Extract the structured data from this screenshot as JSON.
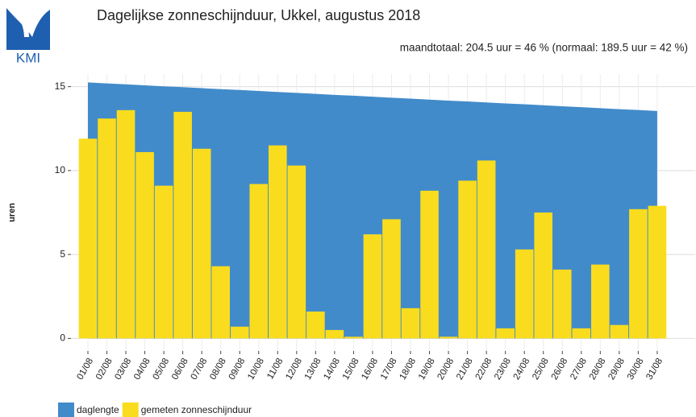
{
  "logo": "KMI",
  "chart_data": {
    "type": "bar",
    "title": "Dagelijkse zonneschijnduur, Ukkel, augustus 2018",
    "subtitle": "maandtotaal: 204.5 uur = 46 % (normaal: 189.5 uur = 42 %)",
    "y_label": "uren",
    "categories": [
      "01/08",
      "02/08",
      "03/08",
      "04/08",
      "05/08",
      "06/08",
      "07/08",
      "08/08",
      "09/08",
      "10/08",
      "11/08",
      "12/08",
      "13/08",
      "14/08",
      "15/08",
      "16/08",
      "17/08",
      "18/08",
      "19/08",
      "20/08",
      "21/08",
      "22/08",
      "23/08",
      "24/08",
      "25/08",
      "26/08",
      "27/08",
      "28/08",
      "29/08",
      "30/08",
      "31/08"
    ],
    "series": [
      {
        "name": "daglengte",
        "color": "#428bca",
        "kind": "area",
        "values": [
          15.25,
          15.19,
          15.14,
          15.08,
          15.02,
          14.97,
          14.91,
          14.85,
          14.8,
          14.74,
          14.68,
          14.63,
          14.57,
          14.51,
          14.46,
          14.4,
          14.34,
          14.29,
          14.23,
          14.17,
          14.12,
          14.06,
          14.0,
          13.95,
          13.89,
          13.83,
          13.78,
          13.72,
          13.66,
          13.61,
          13.55
        ]
      },
      {
        "name": "gemeten zonneschijnduur",
        "color": "#fadc1e",
        "kind": "bar",
        "values": [
          11.9,
          13.1,
          13.6,
          11.1,
          9.1,
          13.5,
          11.3,
          4.3,
          0.7,
          9.2,
          11.5,
          10.3,
          1.6,
          0.5,
          0.1,
          6.2,
          7.1,
          1.8,
          8.8,
          0.1,
          9.4,
          10.6,
          0.6,
          5.3,
          7.5,
          4.1,
          0.6,
          4.4,
          0.8,
          7.7,
          7.9
        ]
      }
    ],
    "ylim": [
      -0.75,
      15.75
    ],
    "yticks": [
      0,
      5,
      10,
      15
    ],
    "grid": true,
    "legend": "bottom-left"
  }
}
